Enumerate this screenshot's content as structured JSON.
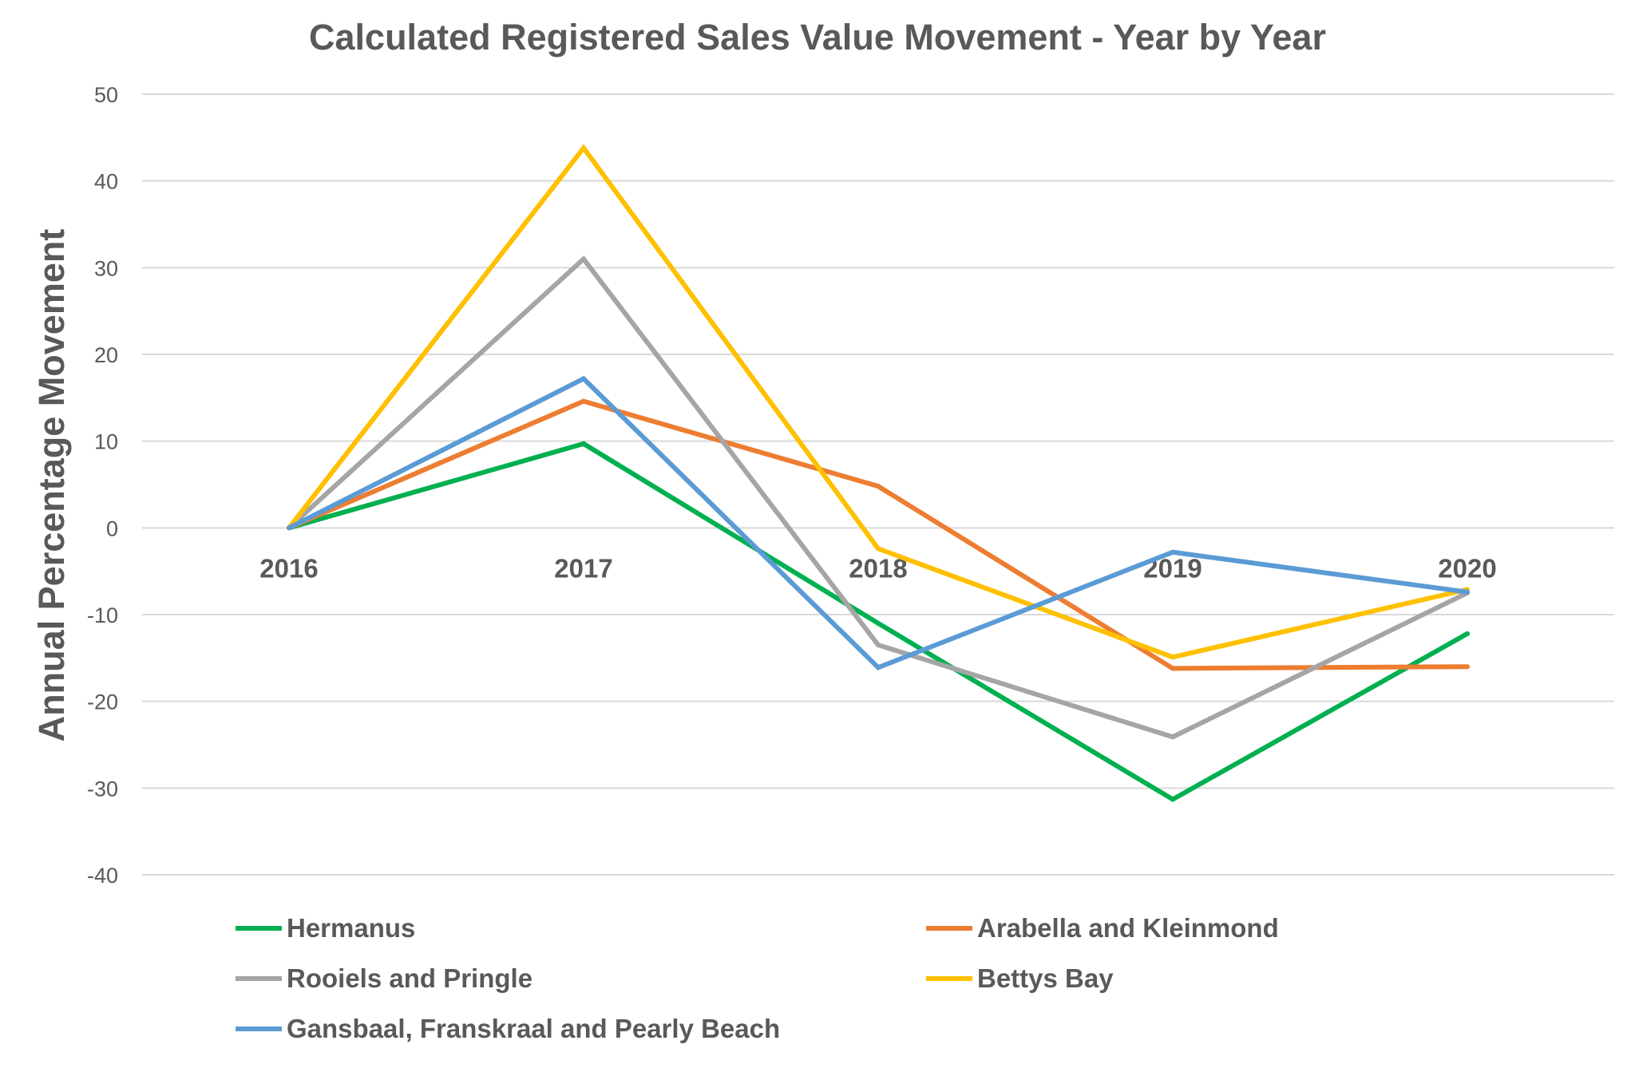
{
  "chart_data": {
    "type": "line",
    "title": "Calculated Registered Sales Value Movement - Year by Year",
    "xlabel": "",
    "ylabel": "Annual Percentage Movement",
    "x": [
      "2016",
      "2017",
      "2018",
      "2019",
      "2020"
    ],
    "ylim": [
      -40,
      50
    ],
    "yticks": [
      50,
      40,
      30,
      20,
      10,
      0,
      -10,
      -20,
      -30,
      -40
    ],
    "grid": true,
    "legend_position": "bottom",
    "series": [
      {
        "name": "Hermanus",
        "color": "#00b050",
        "values": [
          0,
          9.7,
          -11,
          -31.3,
          -12.2
        ]
      },
      {
        "name": "Arabella and Kleinmond",
        "color": "#ed7d31",
        "values": [
          0,
          14.6,
          4.8,
          -16.2,
          -16
        ]
      },
      {
        "name": "Rooiels and Pringle",
        "color": "#a5a5a5",
        "values": [
          0,
          31,
          -13.5,
          -24.1,
          -7.5
        ]
      },
      {
        "name": "Bettys Bay",
        "color": "#ffc000",
        "values": [
          0,
          43.8,
          -2.4,
          -14.9,
          -7.1
        ]
      },
      {
        "name": "Gansbaal, Franskraal and Pearly Beach",
        "color": "#5b9bd5",
        "values": [
          0,
          17.2,
          -16.1,
          -2.8,
          -7.4
        ]
      }
    ]
  }
}
